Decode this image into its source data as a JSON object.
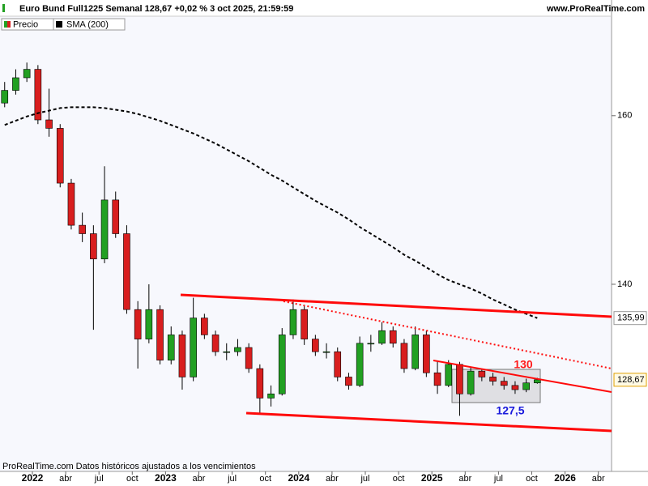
{
  "header": {
    "title": "Euro Bund Full1225 Semanal 128,67 +0,02 % 3 oct 2025, 21:59:59",
    "site": "www.ProRealTime.com"
  },
  "footer": "ProRealTime.com  Datos históricos ajustados a los vencimientos",
  "chart_data": {
    "type": "candlestick",
    "categories": [
      null,
      null,
      null,
      "2022",
      null,
      null,
      "abr",
      null,
      null,
      "jul",
      null,
      null,
      "oct",
      null,
      null,
      "2023",
      null,
      null,
      "abr",
      null,
      null,
      "jul",
      null,
      null,
      "oct",
      null,
      null,
      "2024",
      null,
      null,
      "abr",
      null,
      null,
      "jul",
      null,
      null,
      "oct",
      null,
      null,
      "2025",
      null,
      null,
      "abr",
      null,
      null,
      "jul",
      null,
      null,
      "oct",
      null,
      null,
      "2026",
      null,
      null,
      "abr"
    ],
    "price": {
      "name": "Precio",
      "up_color": "#22a022",
      "down_color": "#d81e1e",
      "open": [
        161.5,
        163,
        164.5,
        165.5,
        159.5,
        158.5,
        152,
        147,
        146,
        143,
        150,
        146,
        137,
        133.5,
        137,
        131,
        134,
        129,
        136,
        134,
        132,
        132,
        132.5,
        130,
        126.5,
        127,
        134,
        137,
        133.5,
        132,
        132,
        129,
        128,
        133,
        133,
        134.5,
        133,
        130,
        134,
        129.5,
        128,
        130.5,
        127,
        129.7,
        129,
        128.5,
        128,
        127.5,
        128.3,
        null,
        null,
        null,
        null,
        null,
        null
      ],
      "high": [
        164,
        165.5,
        166.3,
        166,
        163.2,
        159,
        152.5,
        148.5,
        147,
        154,
        151,
        147,
        138,
        140,
        137.5,
        135,
        134.5,
        138.4,
        136.5,
        134.5,
        133,
        133.5,
        133,
        130.5,
        128,
        134.8,
        138.2,
        137.5,
        134,
        133,
        132.5,
        129.5,
        133.8,
        134,
        135.5,
        135,
        133.5,
        135,
        134.5,
        130.8,
        131,
        130.8,
        130.2,
        130,
        129.5,
        129,
        128.5,
        128.8,
        128.9,
        null,
        null,
        null,
        null,
        null,
        null
      ],
      "low": [
        161,
        162.5,
        164,
        159,
        157.5,
        151.5,
        146.5,
        145,
        134.6,
        142.5,
        145.5,
        136.5,
        130,
        133,
        130.5,
        130.5,
        127.5,
        128.5,
        133.5,
        131.5,
        131,
        131.5,
        129.5,
        124.7,
        125.5,
        126.8,
        133.5,
        132.8,
        131.5,
        131.2,
        128.5,
        127.5,
        127.8,
        132,
        132.8,
        132.5,
        129.5,
        129.8,
        129,
        127,
        127.8,
        124.4,
        126.8,
        128.5,
        128,
        127.5,
        127,
        127.2,
        128.2,
        null,
        null,
        null,
        null,
        null,
        null
      ],
      "close": [
        163,
        164.5,
        165.5,
        159.5,
        158.5,
        152,
        147,
        146,
        143,
        150,
        146,
        137,
        133.5,
        137,
        131,
        134,
        129,
        136,
        134,
        132,
        132,
        132.5,
        130,
        126.5,
        127,
        134,
        137,
        133.5,
        132,
        132,
        129,
        128,
        133,
        133,
        134.5,
        133,
        130,
        134,
        129.5,
        128,
        130.5,
        127,
        129.7,
        129,
        128.5,
        128,
        127.5,
        128.3,
        128.67,
        null,
        null,
        null,
        null,
        null,
        null
      ]
    },
    "sma": {
      "name": "SMA (200)",
      "color": "#000000",
      "values": [
        158.9,
        159.4,
        159.9,
        160.3,
        160.6,
        160.9,
        161,
        161,
        161,
        160.9,
        160.7,
        160.5,
        160.2,
        159.8,
        159.4,
        158.9,
        158.4,
        157.9,
        157.3,
        156.7,
        156,
        155.3,
        154.6,
        153.8,
        153,
        152.3,
        151.5,
        150.7,
        149.9,
        149.2,
        148.5,
        147.7,
        146.8,
        146,
        145.2,
        144.4,
        143.5,
        142.8,
        142,
        141.2,
        140.5,
        140,
        139.5,
        138.9,
        138.2,
        137.6,
        137,
        136.5,
        135.99,
        null,
        null,
        null,
        null,
        null,
        null
      ]
    },
    "ylim": [
      117.8,
      171.8
    ],
    "yticks": [
      160,
      140
    ],
    "markers": [
      {
        "value": 135.99,
        "label": "135,99"
      },
      {
        "value": 128.67,
        "label": "128,67"
      }
    ],
    "annotations": [
      "130",
      "127,5"
    ]
  }
}
